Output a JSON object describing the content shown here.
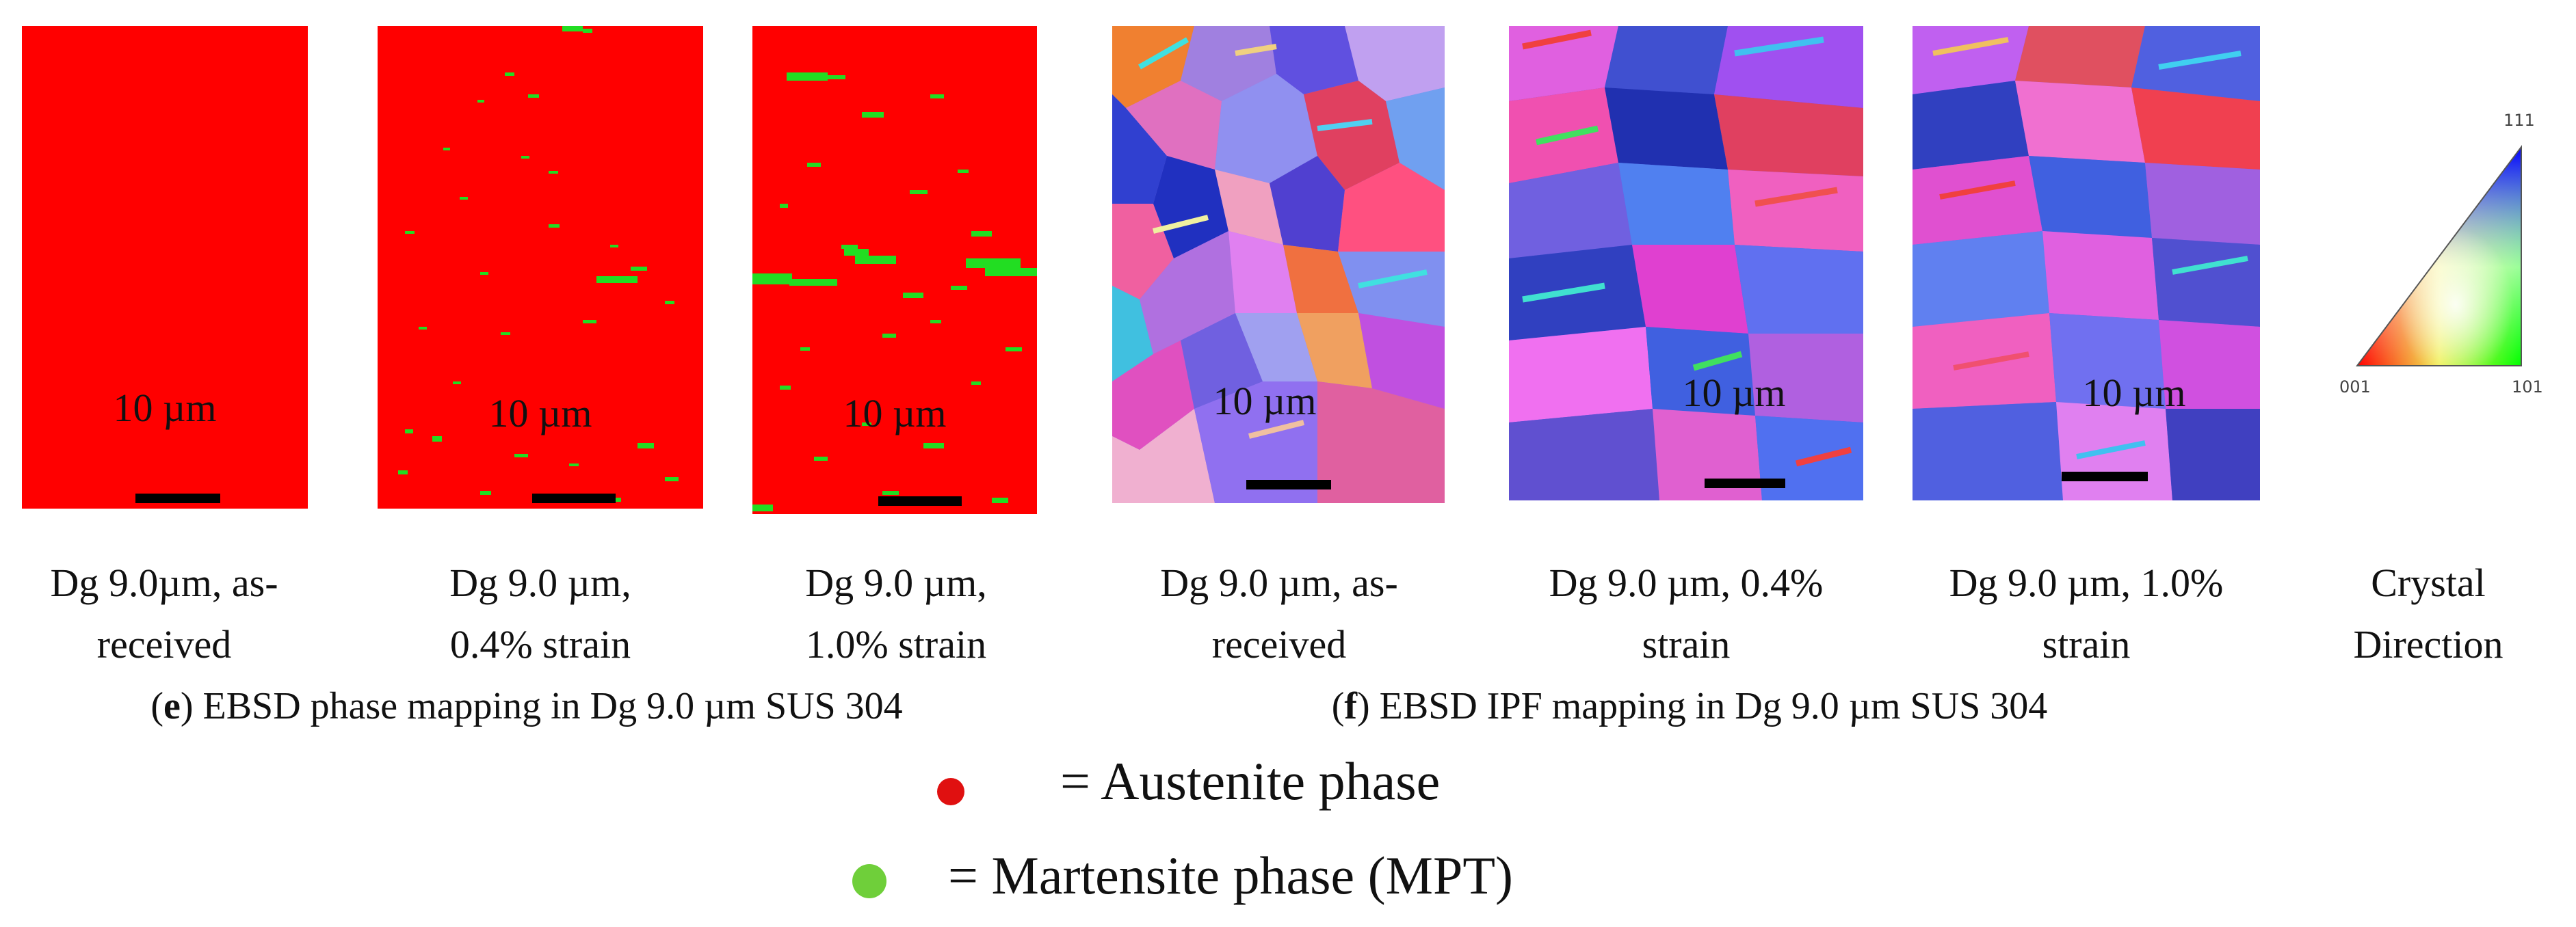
{
  "scale_bar_text": "10 µm",
  "panels": [
    {
      "id": "phase-as-received",
      "caption_lines": [
        "Dg 9.0µm, as-",
        "received"
      ]
    },
    {
      "id": "phase-0.4",
      "caption_lines": [
        "Dg 9.0 µm,",
        "0.4% strain"
      ]
    },
    {
      "id": "phase-1.0",
      "caption_lines": [
        "Dg 9.0 µm,",
        "1.0% strain"
      ]
    },
    {
      "id": "ipf-as-received",
      "caption_lines": [
        "Dg 9.0 µm, as-",
        "received"
      ]
    },
    {
      "id": "ipf-0.4",
      "caption_lines": [
        "Dg 9.0 µm, 0.4%",
        "strain"
      ]
    },
    {
      "id": "ipf-1.0",
      "caption_lines": [
        "Dg 9.0 µm, 1.0%",
        "strain"
      ]
    },
    {
      "id": "crystal-direction",
      "caption_lines": [
        "Crystal",
        "Direction"
      ]
    }
  ],
  "group_captions": {
    "e": {
      "letter": "e",
      "text": ") EBSD phase mapping in Dg 9.0 µm SUS 304"
    },
    "f": {
      "letter": "f",
      "text": ") EBSD IPF mapping in Dg 9.0 µm SUS 304"
    }
  },
  "triangle_labels": {
    "top": "111",
    "left": "001",
    "right": "101"
  },
  "legend": [
    {
      "text": "= Austenite phase",
      "color": "#e01010"
    },
    {
      "text": "= Martensite phase (MPT)",
      "color": "#6fcf3a"
    }
  ],
  "colors": {
    "austenite": "#ff0000",
    "martensite": "#22dd22"
  }
}
